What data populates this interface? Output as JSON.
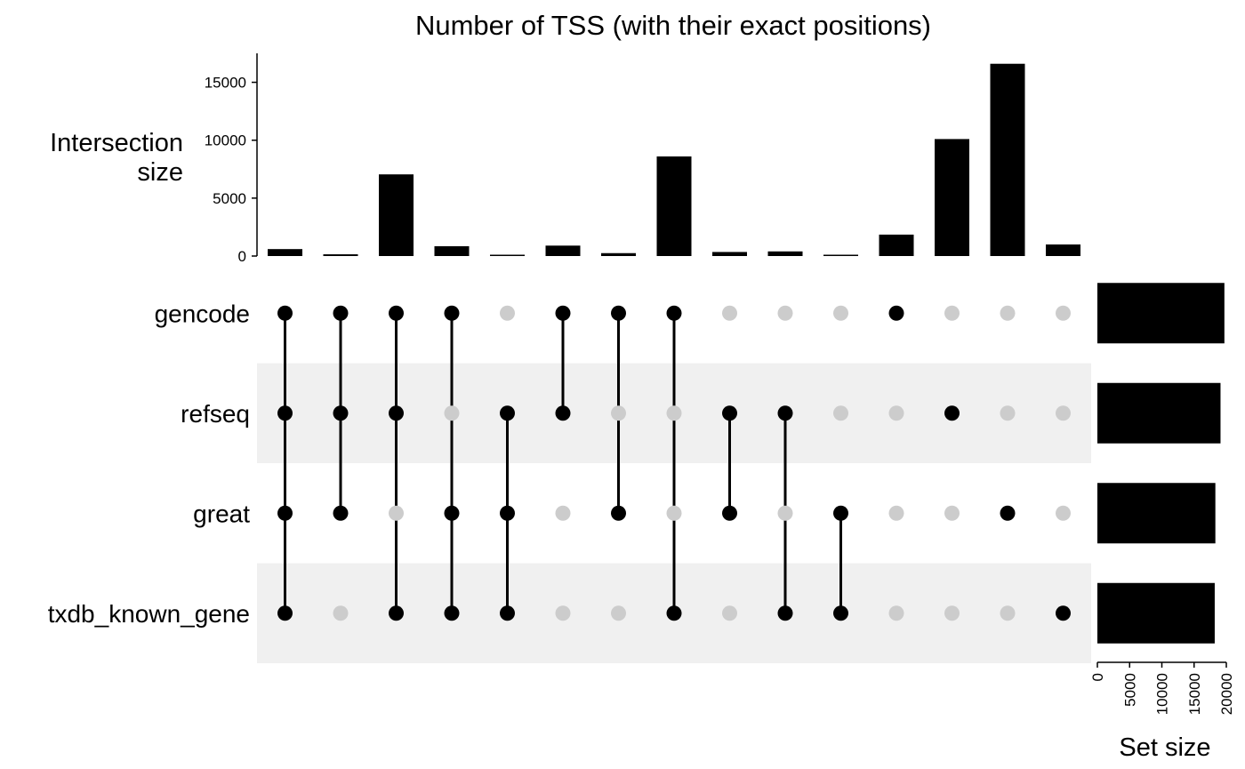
{
  "chart_data": {
    "type": "upset",
    "title": "Number of TSS (with their exact positions)",
    "top_axis": {
      "label_lines": [
        "Intersection",
        "size"
      ],
      "ticks": [
        0,
        5000,
        10000,
        15000
      ],
      "ylim": [
        0,
        17500
      ]
    },
    "sets": [
      {
        "name": "gencode",
        "size": 19700
      },
      {
        "name": "refseq",
        "size": 19100
      },
      {
        "name": "great",
        "size": 18300
      },
      {
        "name": "txdb_known_gene",
        "size": 18200
      }
    ],
    "set_axis": {
      "label": "Set size",
      "ticks": [
        0,
        5000,
        10000,
        15000,
        20000
      ],
      "xlim": [
        0,
        20000
      ]
    },
    "intersections": [
      {
        "members": [
          1,
          1,
          1,
          1
        ],
        "size": 600
      },
      {
        "members": [
          1,
          1,
          1,
          0
        ],
        "size": 150
      },
      {
        "members": [
          1,
          1,
          0,
          1
        ],
        "size": 7050
      },
      {
        "members": [
          1,
          0,
          1,
          1
        ],
        "size": 850
      },
      {
        "members": [
          0,
          1,
          1,
          1
        ],
        "size": 60
      },
      {
        "members": [
          1,
          1,
          0,
          0
        ],
        "size": 900
      },
      {
        "members": [
          1,
          0,
          1,
          0
        ],
        "size": 250
      },
      {
        "members": [
          1,
          0,
          0,
          1
        ],
        "size": 8600
      },
      {
        "members": [
          0,
          1,
          1,
          0
        ],
        "size": 350
      },
      {
        "members": [
          0,
          1,
          0,
          1
        ],
        "size": 400
      },
      {
        "members": [
          0,
          0,
          1,
          1
        ],
        "size": 80
      },
      {
        "members": [
          1,
          0,
          0,
          0
        ],
        "size": 1850
      },
      {
        "members": [
          0,
          1,
          0,
          0
        ],
        "size": 10100
      },
      {
        "members": [
          0,
          0,
          1,
          0
        ],
        "size": 16600
      },
      {
        "members": [
          0,
          0,
          0,
          1
        ],
        "size": 1000
      }
    ],
    "colors": {
      "bar": "#000000",
      "dot_active": "#000000",
      "dot_inactive": "#cccccc",
      "row_shade": "#f0f0f0"
    }
  }
}
